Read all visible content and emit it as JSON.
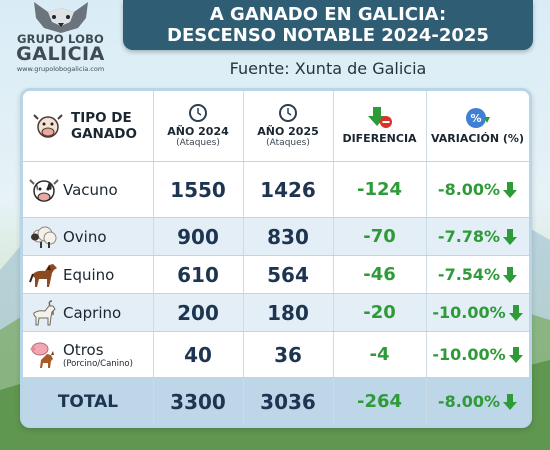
{
  "logo": {
    "line1": "GRUPO LOBO",
    "line2": "GALICIA",
    "url": "www.grupolobogalicia.com"
  },
  "header": {
    "title_line1": "A GANADO EN GALICIA:",
    "title_line2": "DESCENSO NOTABLE 2024-2025",
    "source": "Fuente: Xunta de Galicia"
  },
  "table": {
    "headers": {
      "tipo": "TIPO DE GANADO",
      "y2024": "AÑO 2024",
      "y2024_sub": "(Ataques)",
      "y2025": "AÑO 2025",
      "y2025_sub": "(Ataques)",
      "diferencia": "DIFERENCIA",
      "variacion": "VARIACIÓN (%)"
    },
    "rows": [
      {
        "name": "Vacuno",
        "sub": "",
        "icon": "cow-icon",
        "y2024": "1550",
        "y2025": "1426",
        "diff": "-124",
        "var": "-8.00%"
      },
      {
        "name": "Ovino",
        "sub": "",
        "icon": "sheep-icon",
        "y2024": "900",
        "y2025": "830",
        "diff": "-70",
        "var": "-7.78%"
      },
      {
        "name": "Equino",
        "sub": "",
        "icon": "horse-icon",
        "y2024": "610",
        "y2025": "564",
        "diff": "-46",
        "var": "-7.54%"
      },
      {
        "name": "Caprino",
        "sub": "",
        "icon": "goat-icon",
        "y2024": "200",
        "y2025": "180",
        "diff": "-20",
        "var": "-10.00%"
      },
      {
        "name": "Otros",
        "sub": "(Porcino/Canino)",
        "icon": "pig-dog-icon",
        "y2024": "40",
        "y2025": "36",
        "diff": "-4",
        "var": "-10.00%"
      }
    ],
    "total": {
      "name": "TOTAL",
      "y2024": "3300",
      "y2025": "3036",
      "diff": "-264",
      "var": "-8.00%"
    }
  },
  "colors": {
    "banner": "#2f5d73",
    "positive_green": "#2f9a38",
    "row_alt": "#e3eef6",
    "total_row": "#bdd6e8"
  }
}
